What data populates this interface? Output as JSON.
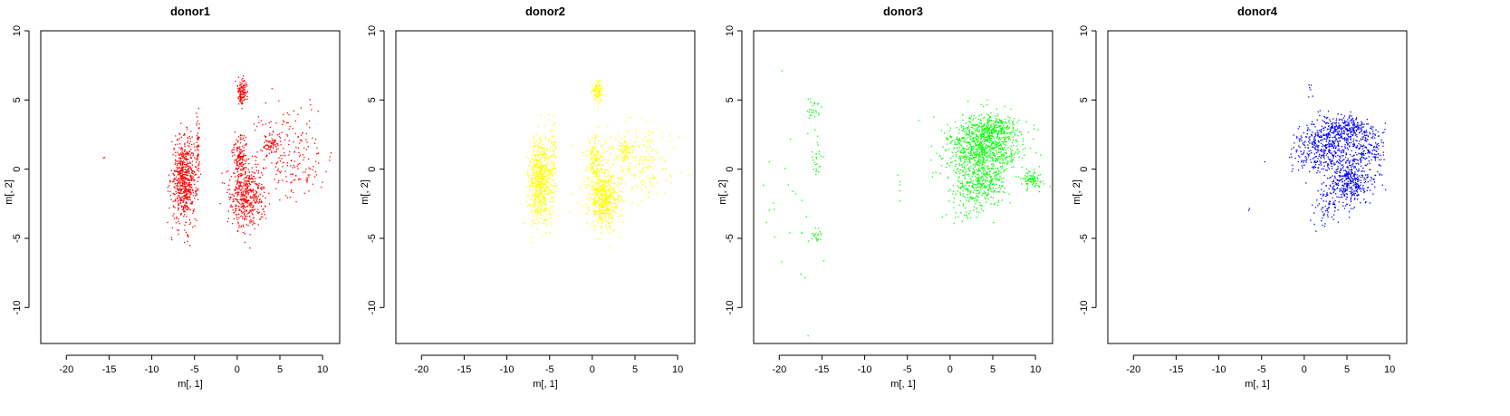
{
  "chart_data": [
    {
      "type": "scatter",
      "title": "donor1",
      "xlabel": "m[, 1]",
      "ylabel": "m[, 2]",
      "xlim": [
        -23,
        12
      ],
      "ylim": [
        -12.6,
        10
      ],
      "xticks": [
        "-20",
        "-15",
        "-10",
        "-5",
        "0",
        "5",
        "10"
      ],
      "yticks": [
        "-10",
        "-5",
        "0",
        "5",
        "10"
      ],
      "grid": false,
      "color": "#ff0000",
      "series": [
        {
          "clusters": [
            {
              "cx": -6.2,
              "cy": -0.8,
              "sx": 0.75,
              "sy": 1.5,
              "n": 650
            },
            {
              "cx": 1.2,
              "cy": -2.0,
              "sx": 1.0,
              "sy": 1.1,
              "n": 450
            },
            {
              "cx": 0.3,
              "cy": 0.9,
              "sx": 0.45,
              "sy": 0.9,
              "n": 150
            },
            {
              "cx": 0.6,
              "cy": 5.6,
              "sx": 0.3,
              "sy": 0.45,
              "n": 120
            },
            {
              "cx": -4.6,
              "cy": 1.8,
              "sx": 0.15,
              "sy": 1.3,
              "n": 50
            },
            {
              "cx": 4.0,
              "cy": 1.8,
              "sx": 0.4,
              "sy": 0.35,
              "n": 60
            },
            {
              "cx": 5.5,
              "cy": 1.2,
              "sx": 2.2,
              "sy": 1.6,
              "n": 180
            },
            {
              "cx": 7.8,
              "cy": 0.2,
              "sx": 1.4,
              "sy": 1.0,
              "n": 40
            },
            {
              "cx": -15.6,
              "cy": 0.9,
              "sx": 0.1,
              "sy": 0.1,
              "n": 2
            }
          ]
        }
      ]
    },
    {
      "type": "scatter",
      "title": "donor2",
      "xlabel": "m[, 1]",
      "ylabel": "m[, 2]",
      "xlim": [
        -23,
        12
      ],
      "ylim": [
        -12.6,
        10
      ],
      "xticks": [
        "-20",
        "-15",
        "-10",
        "-5",
        "0",
        "5",
        "10"
      ],
      "yticks": [
        "-10",
        "-5",
        "0",
        "5",
        "10"
      ],
      "grid": false,
      "color": "#ffff00",
      "series": [
        {
          "clusters": [
            {
              "cx": -6.0,
              "cy": -0.9,
              "sx": 0.7,
              "sy": 1.5,
              "n": 650
            },
            {
              "cx": 1.3,
              "cy": -2.2,
              "sx": 0.9,
              "sy": 1.0,
              "n": 550
            },
            {
              "cx": 0.3,
              "cy": 0.8,
              "sx": 0.45,
              "sy": 0.9,
              "n": 150
            },
            {
              "cx": 0.6,
              "cy": 5.6,
              "sx": 0.3,
              "sy": 0.45,
              "n": 100
            },
            {
              "cx": -4.5,
              "cy": 1.5,
              "sx": 0.15,
              "sy": 1.3,
              "n": 40
            },
            {
              "cx": 3.8,
              "cy": 1.4,
              "sx": 0.4,
              "sy": 0.35,
              "n": 50
            },
            {
              "cx": 5.3,
              "cy": 0.6,
              "sx": 2.2,
              "sy": 1.4,
              "n": 220
            }
          ]
        }
      ]
    },
    {
      "type": "scatter",
      "title": "donor3",
      "xlabel": "m[, 1]",
      "ylabel": "m[, 2]",
      "xlim": [
        -23,
        12
      ],
      "ylim": [
        -12.6,
        10
      ],
      "xticks": [
        "-20",
        "-15",
        "-10",
        "-5",
        "0",
        "5",
        "10"
      ],
      "yticks": [
        "-10",
        "-5",
        "0",
        "5",
        "10"
      ],
      "grid": false,
      "color": "#00ff00",
      "series": [
        {
          "clusters": [
            {
              "cx": 3.8,
              "cy": 1.4,
              "sx": 2.3,
              "sy": 1.2,
              "n": 900
            },
            {
              "cx": 4.8,
              "cy": 3.0,
              "sx": 1.5,
              "sy": 0.4,
              "n": 200
            },
            {
              "cx": 3.5,
              "cy": -1.2,
              "sx": 1.6,
              "sy": 0.8,
              "n": 250
            },
            {
              "cx": 9.5,
              "cy": -0.8,
              "sx": 0.8,
              "sy": 0.3,
              "n": 80
            },
            {
              "cx": 1.8,
              "cy": -2.8,
              "sx": 1.0,
              "sy": 0.8,
              "n": 40
            },
            {
              "cx": -16.0,
              "cy": 4.5,
              "sx": 0.4,
              "sy": 0.5,
              "n": 25
            },
            {
              "cx": -15.6,
              "cy": 0.8,
              "sx": 0.3,
              "sy": 0.8,
              "n": 25
            },
            {
              "cx": -15.6,
              "cy": -4.9,
              "sx": 0.4,
              "sy": 0.4,
              "n": 20
            },
            {
              "cx": -18.5,
              "cy": -2.5,
              "sx": 2.0,
              "sy": 3.5,
              "n": 25
            },
            {
              "cx": -6.0,
              "cy": -1.2,
              "sx": 0.2,
              "sy": 0.8,
              "n": 5
            }
          ]
        }
      ]
    },
    {
      "type": "scatter",
      "title": "donor4",
      "xlabel": "m[, 1]",
      "ylabel": "m[, 2]",
      "xlim": [
        -23,
        12
      ],
      "ylim": [
        -12.6,
        10
      ],
      "xticks": [
        "-20",
        "-15",
        "-10",
        "-5",
        "0",
        "5",
        "10"
      ],
      "yticks": [
        "-10",
        "-5",
        "0",
        "5",
        "10"
      ],
      "grid": false,
      "color": "#0000ff",
      "series": [
        {
          "clusters": [
            {
              "cx": 4.8,
              "cy": 2.9,
              "sx": 1.6,
              "sy": 0.5,
              "n": 300
            },
            {
              "cx": 2.5,
              "cy": 1.4,
              "sx": 1.9,
              "sy": 0.9,
              "n": 450
            },
            {
              "cx": 5.2,
              "cy": -0.9,
              "sx": 1.3,
              "sy": 0.8,
              "n": 400
            },
            {
              "cx": 7.6,
              "cy": 1.4,
              "sx": 1.0,
              "sy": 0.9,
              "n": 150
            },
            {
              "cx": 2.5,
              "cy": -3.0,
              "sx": 1.0,
              "sy": 0.7,
              "n": 60
            },
            {
              "cx": 0.7,
              "cy": 5.8,
              "sx": 0.15,
              "sy": 0.3,
              "n": 6
            },
            {
              "cx": -6.5,
              "cy": -3.0,
              "sx": 0.1,
              "sy": 0.1,
              "n": 2
            }
          ]
        }
      ]
    }
  ]
}
